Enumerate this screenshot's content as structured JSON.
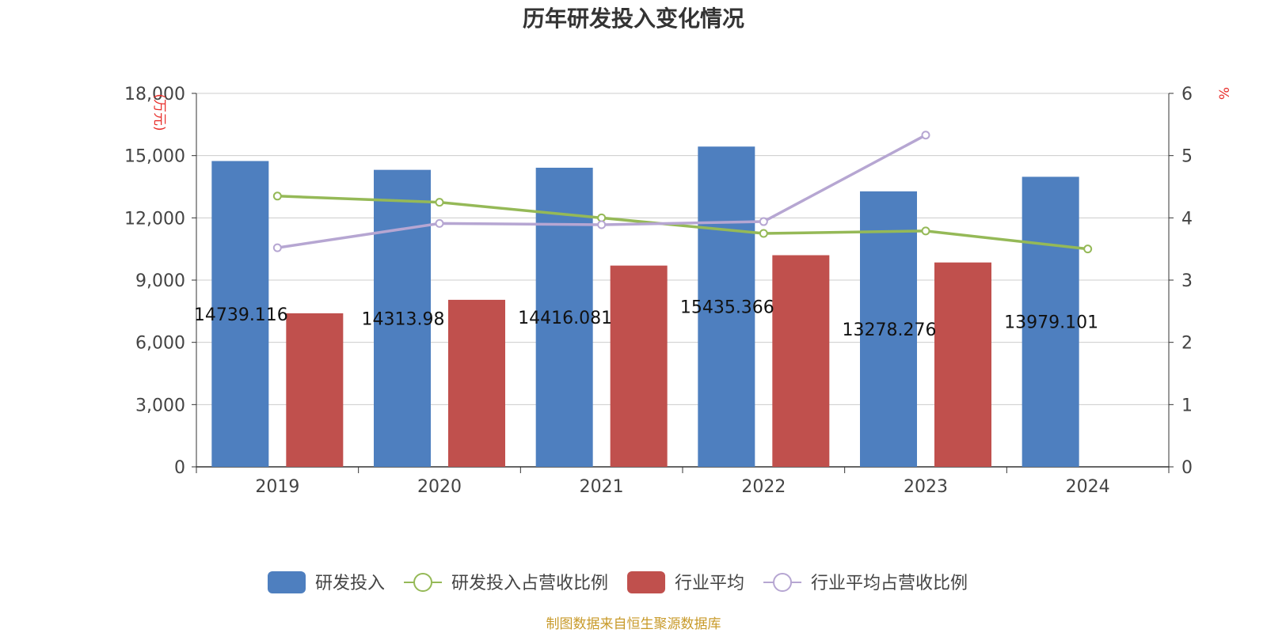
{
  "chart_data": {
    "type": "bar",
    "title": "历年研发投入变化情况",
    "categories": [
      "2019",
      "2020",
      "2021",
      "2022",
      "2023",
      "2024"
    ],
    "y_left": {
      "unit": "(万元)",
      "ylim": [
        0,
        18000
      ],
      "ticks": [
        0,
        3000,
        6000,
        9000,
        12000,
        15000,
        18000
      ],
      "tick_labels": [
        "0",
        "3,000",
        "6,000",
        "9,000",
        "12,000",
        "15,000",
        "18,000"
      ]
    },
    "y_right": {
      "unit": "%",
      "ylim": [
        0,
        6
      ],
      "ticks": [
        0,
        1,
        2,
        3,
        4,
        5,
        6
      ],
      "tick_labels": [
        "0",
        "1",
        "2",
        "3",
        "4",
        "5",
        "6"
      ]
    },
    "grid": true,
    "legend_position": "bottom",
    "series": [
      {
        "name": "研发投入",
        "type": "bar",
        "axis": "left",
        "color": "#4e7fbf",
        "values": [
          14739.116,
          14313.98,
          14416.081,
          15435.366,
          13278.276,
          13979.101
        ],
        "labels": [
          "14739.116",
          "14313.98",
          "14416.081",
          "15435.366",
          "13278.276",
          "13979.101"
        ]
      },
      {
        "name": "研发投入占营收比例",
        "type": "line",
        "axis": "right",
        "color": "#95b957",
        "values": [
          4.35,
          4.25,
          4.0,
          3.75,
          3.79,
          3.5
        ]
      },
      {
        "name": "行业平均",
        "type": "bar",
        "axis": "left",
        "color": "#c0504d",
        "values": [
          7400,
          8050,
          9700,
          10200,
          9850,
          null
        ]
      },
      {
        "name": "行业平均占营收比例",
        "type": "line",
        "axis": "right",
        "color": "#b6a6d2",
        "values": [
          3.52,
          3.91,
          3.89,
          3.94,
          5.33,
          null
        ]
      }
    ],
    "source": "制图数据来自恒生聚源数据库"
  }
}
